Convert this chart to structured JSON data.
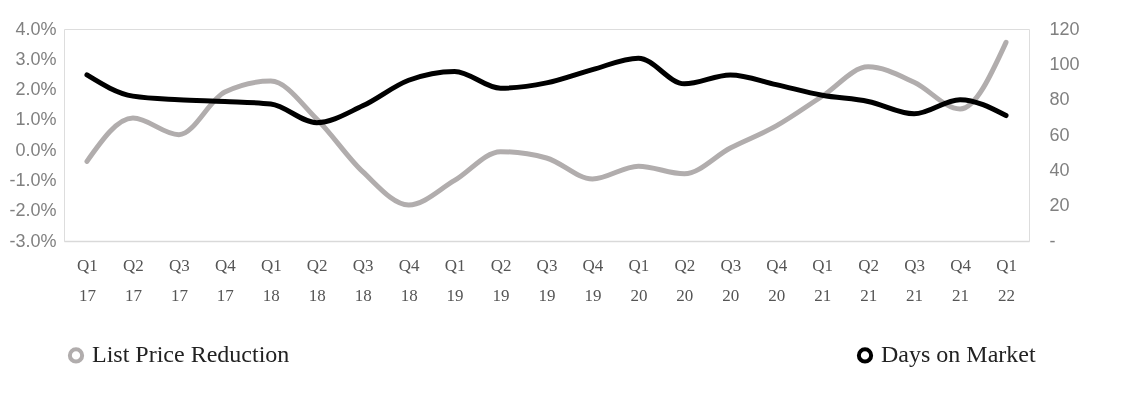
{
  "chart_data": {
    "type": "line",
    "categories": [
      "Q1 17",
      "Q2 17",
      "Q3 17",
      "Q4 17",
      "Q1 18",
      "Q2 18",
      "Q3 18",
      "Q4 18",
      "Q1 19",
      "Q2 19",
      "Q3 19",
      "Q4 19",
      "Q1 20",
      "Q2 20",
      "Q3 20",
      "Q4 20",
      "Q1 21",
      "Q2 21",
      "Q3 21",
      "Q4 21",
      "Q1 22"
    ],
    "series": [
      {
        "name": "List Price Reduction",
        "color": "#b1adad",
        "axis": "y",
        "values": [
          -0.37,
          1.06,
          0.51,
          1.92,
          2.28,
          1.03,
          -0.71,
          -1.81,
          -1.0,
          -0.05,
          -0.26,
          -0.95,
          -0.53,
          -0.78,
          0.07,
          0.8,
          1.78,
          2.75,
          2.24,
          1.36,
          3.56
        ]
      },
      {
        "name": "Days on Market",
        "color": "#000000",
        "axis": "y2",
        "values": [
          94,
          82,
          80,
          79,
          77.5,
          67,
          76.5,
          91,
          96,
          86.5,
          89.5,
          97,
          103.5,
          89,
          94,
          88.5,
          82.5,
          79,
          72,
          80,
          71
        ]
      }
    ],
    "ylim": [
      -3.0,
      4.0
    ],
    "yticks": [
      {
        "value": -3.0,
        "label": "-3.0%"
      },
      {
        "value": -2.0,
        "label": "-2.0%"
      },
      {
        "value": -1.0,
        "label": "-1.0%"
      },
      {
        "value": 0.0,
        "label": "0.0%"
      },
      {
        "value": 1.0,
        "label": "1.0%"
      },
      {
        "value": 2.0,
        "label": "2.0%"
      },
      {
        "value": 3.0,
        "label": "3.0%"
      },
      {
        "value": 4.0,
        "label": "4.0%"
      }
    ],
    "y2lim": [
      0,
      120
    ],
    "y2ticks": [
      {
        "value": 0,
        "label": "-"
      },
      20,
      40,
      60,
      80,
      100,
      120
    ],
    "grid": false,
    "legend": "bottom",
    "line_style": "solid",
    "marker": "none"
  }
}
